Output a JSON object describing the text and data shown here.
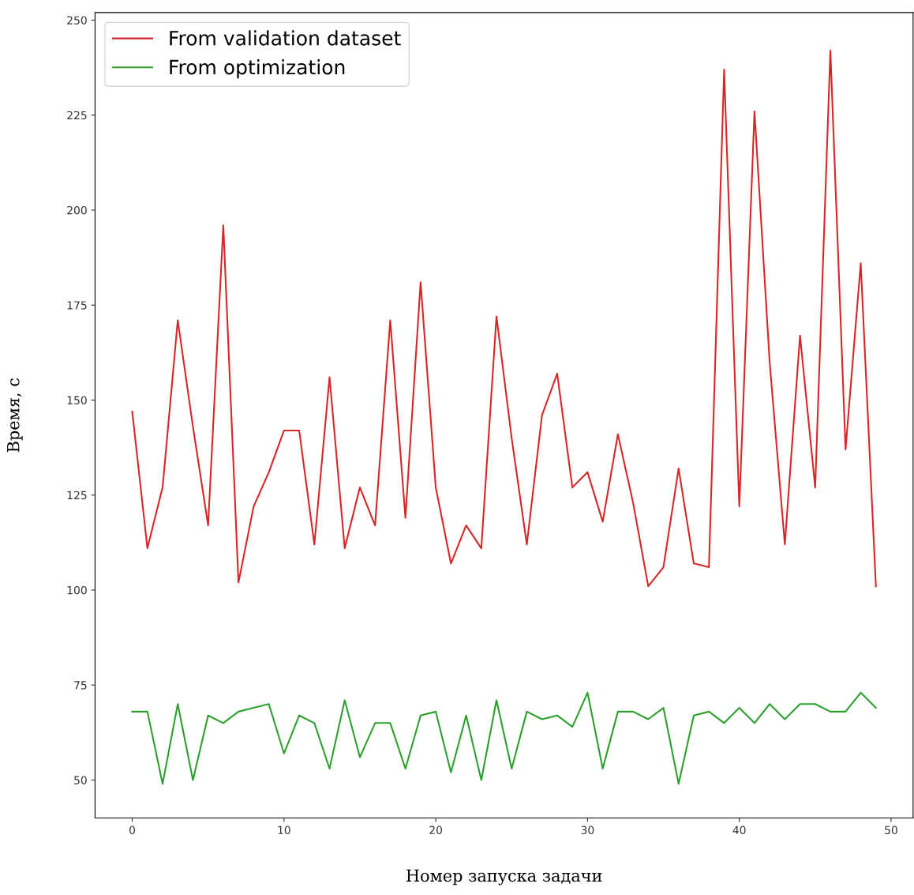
{
  "chart_data": {
    "type": "line",
    "xlabel": "Номер запуска задачи",
    "ylabel": "Время, с",
    "x": [
      0,
      1,
      2,
      3,
      4,
      5,
      6,
      7,
      8,
      9,
      10,
      11,
      12,
      13,
      14,
      15,
      16,
      17,
      18,
      19,
      20,
      21,
      22,
      23,
      24,
      25,
      26,
      27,
      28,
      29,
      30,
      31,
      32,
      33,
      34,
      35,
      36,
      37,
      38,
      39,
      40,
      41,
      42,
      43,
      44,
      45,
      46,
      47,
      48,
      49
    ],
    "series": [
      {
        "name": "From validation dataset",
        "color": "#d62728",
        "values": [
          147,
          111,
          127,
          171,
          143,
          117,
          196,
          102,
          122,
          131,
          142,
          142,
          112,
          156,
          111,
          127,
          117,
          171,
          119,
          181,
          127,
          107,
          117,
          111,
          172,
          140,
          112,
          146,
          157,
          127,
          131,
          118,
          141,
          123,
          101,
          106,
          132,
          107,
          106,
          237,
          122,
          226,
          160,
          112,
          167,
          127,
          242,
          137,
          186,
          101
        ]
      },
      {
        "name": "From optimization",
        "color": "#2ca02c",
        "values": [
          68,
          68,
          49,
          70,
          50,
          67,
          65,
          68,
          69,
          70,
          57,
          67,
          65,
          53,
          71,
          56,
          65,
          65,
          53,
          67,
          68,
          52,
          67,
          50,
          71,
          53,
          68,
          66,
          67,
          64,
          73,
          53,
          68,
          68,
          66,
          69,
          49,
          67,
          68,
          65,
          69,
          65,
          70,
          66,
          70,
          70,
          68,
          68,
          73,
          69
        ]
      }
    ],
    "xlim": [
      -2.45,
      51.45
    ],
    "ylim": [
      40,
      252
    ],
    "xticks": [
      0,
      10,
      20,
      30,
      40,
      50
    ],
    "yticks": [
      50,
      75,
      100,
      125,
      150,
      175,
      200,
      225,
      250
    ],
    "legend": "top left",
    "grid": false,
    "marker": "none",
    "line_style": "solid"
  }
}
